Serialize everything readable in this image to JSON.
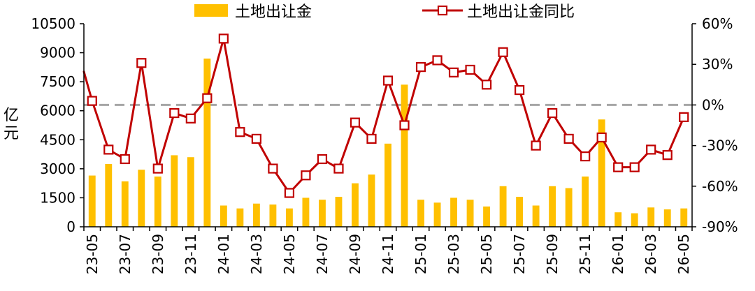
{
  "chart_data": {
    "type": "bar-line",
    "categories": [
      "23-05",
      "23-06",
      "23-07",
      "23-08",
      "23-09",
      "23-10",
      "23-11",
      "23-12",
      "24-01",
      "24-02",
      "24-03",
      "24-04",
      "24-05",
      "24-06",
      "24-07",
      "24-08",
      "24-09",
      "24-10",
      "24-11",
      "24-12",
      "25-01",
      "25-02",
      "25-03",
      "25-04",
      "25-05",
      "25-06",
      "25-07",
      "25-08",
      "25-09",
      "25-10",
      "25-11",
      "25-12",
      "26-01",
      "26-02",
      "26-03",
      "26-04",
      "26-05"
    ],
    "x_tick_labels": [
      "23-05",
      "23-07",
      "23-09",
      "23-11",
      "24-01",
      "24-03",
      "24-05",
      "24-07",
      "24-09",
      "24-11",
      "25-01",
      "25-03",
      "25-05",
      "25-07",
      "25-09",
      "25-11",
      "26-01",
      "26-03",
      "26-05"
    ],
    "series": [
      {
        "name": "土地出让金",
        "type": "bar",
        "axis": "left",
        "color": "#FFC000",
        "values": [
          2650,
          3250,
          2350,
          2950,
          2600,
          3700,
          3600,
          8700,
          1100,
          950,
          1200,
          1150,
          950,
          1500,
          1400,
          1550,
          2250,
          2700,
          4300,
          7350,
          1400,
          1250,
          1500,
          1400,
          1050,
          2100,
          1550,
          1100,
          2100,
          2000,
          2600,
          5550,
          750,
          700,
          1000,
          900,
          950
        ]
      },
      {
        "name": "土地出让金同比",
        "type": "line",
        "axis": "right",
        "color": "#C00000",
        "values": [
          3,
          -33,
          -40,
          31,
          -47,
          -6,
          -10,
          5,
          49,
          -20,
          -25,
          -47,
          -65,
          -52,
          -40,
          -47,
          -13,
          -25,
          18,
          -15,
          28,
          33,
          24,
          26,
          15,
          39,
          11,
          -30,
          -6,
          -25,
          -38,
          -24,
          -46,
          -46,
          -33,
          -37,
          -9
        ]
      }
    ],
    "y_left": {
      "label": "亿元",
      "ylim": [
        0,
        10500
      ],
      "ticks": [
        0,
        1500,
        3000,
        4500,
        6000,
        7500,
        9000,
        10500
      ]
    },
    "y_right": {
      "ylim": [
        -90,
        60
      ],
      "ticks": [
        -90,
        -60,
        -30,
        0,
        30,
        60
      ],
      "tick_suffix": "%"
    },
    "reference_line": {
      "axis": "right",
      "value": 0,
      "style": "dashed",
      "color": "#A6A6A6"
    },
    "legend": {
      "placement": "top-center",
      "entries": [
        "土地出让金",
        "土地出让金同比"
      ]
    },
    "grid": false
  }
}
